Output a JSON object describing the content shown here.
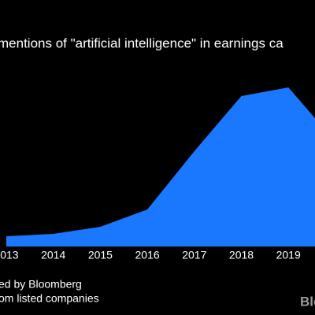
{
  "chart_data": {
    "type": "area",
    "title": "mentions of \"artificial intelligence\" in earnings ca",
    "footer": [
      "ed by Bloomberg",
      "om listed companies"
    ],
    "brand": "Blo",
    "categories": [
      "2013",
      "2014",
      "2015",
      "2016",
      "2017",
      "2018",
      "2019",
      null
    ],
    "values": [
      13,
      16,
      25,
      47,
      121,
      191,
      202,
      133
    ],
    "color": "#1a78ff",
    "ylim": [
      0,
      210
    ]
  }
}
